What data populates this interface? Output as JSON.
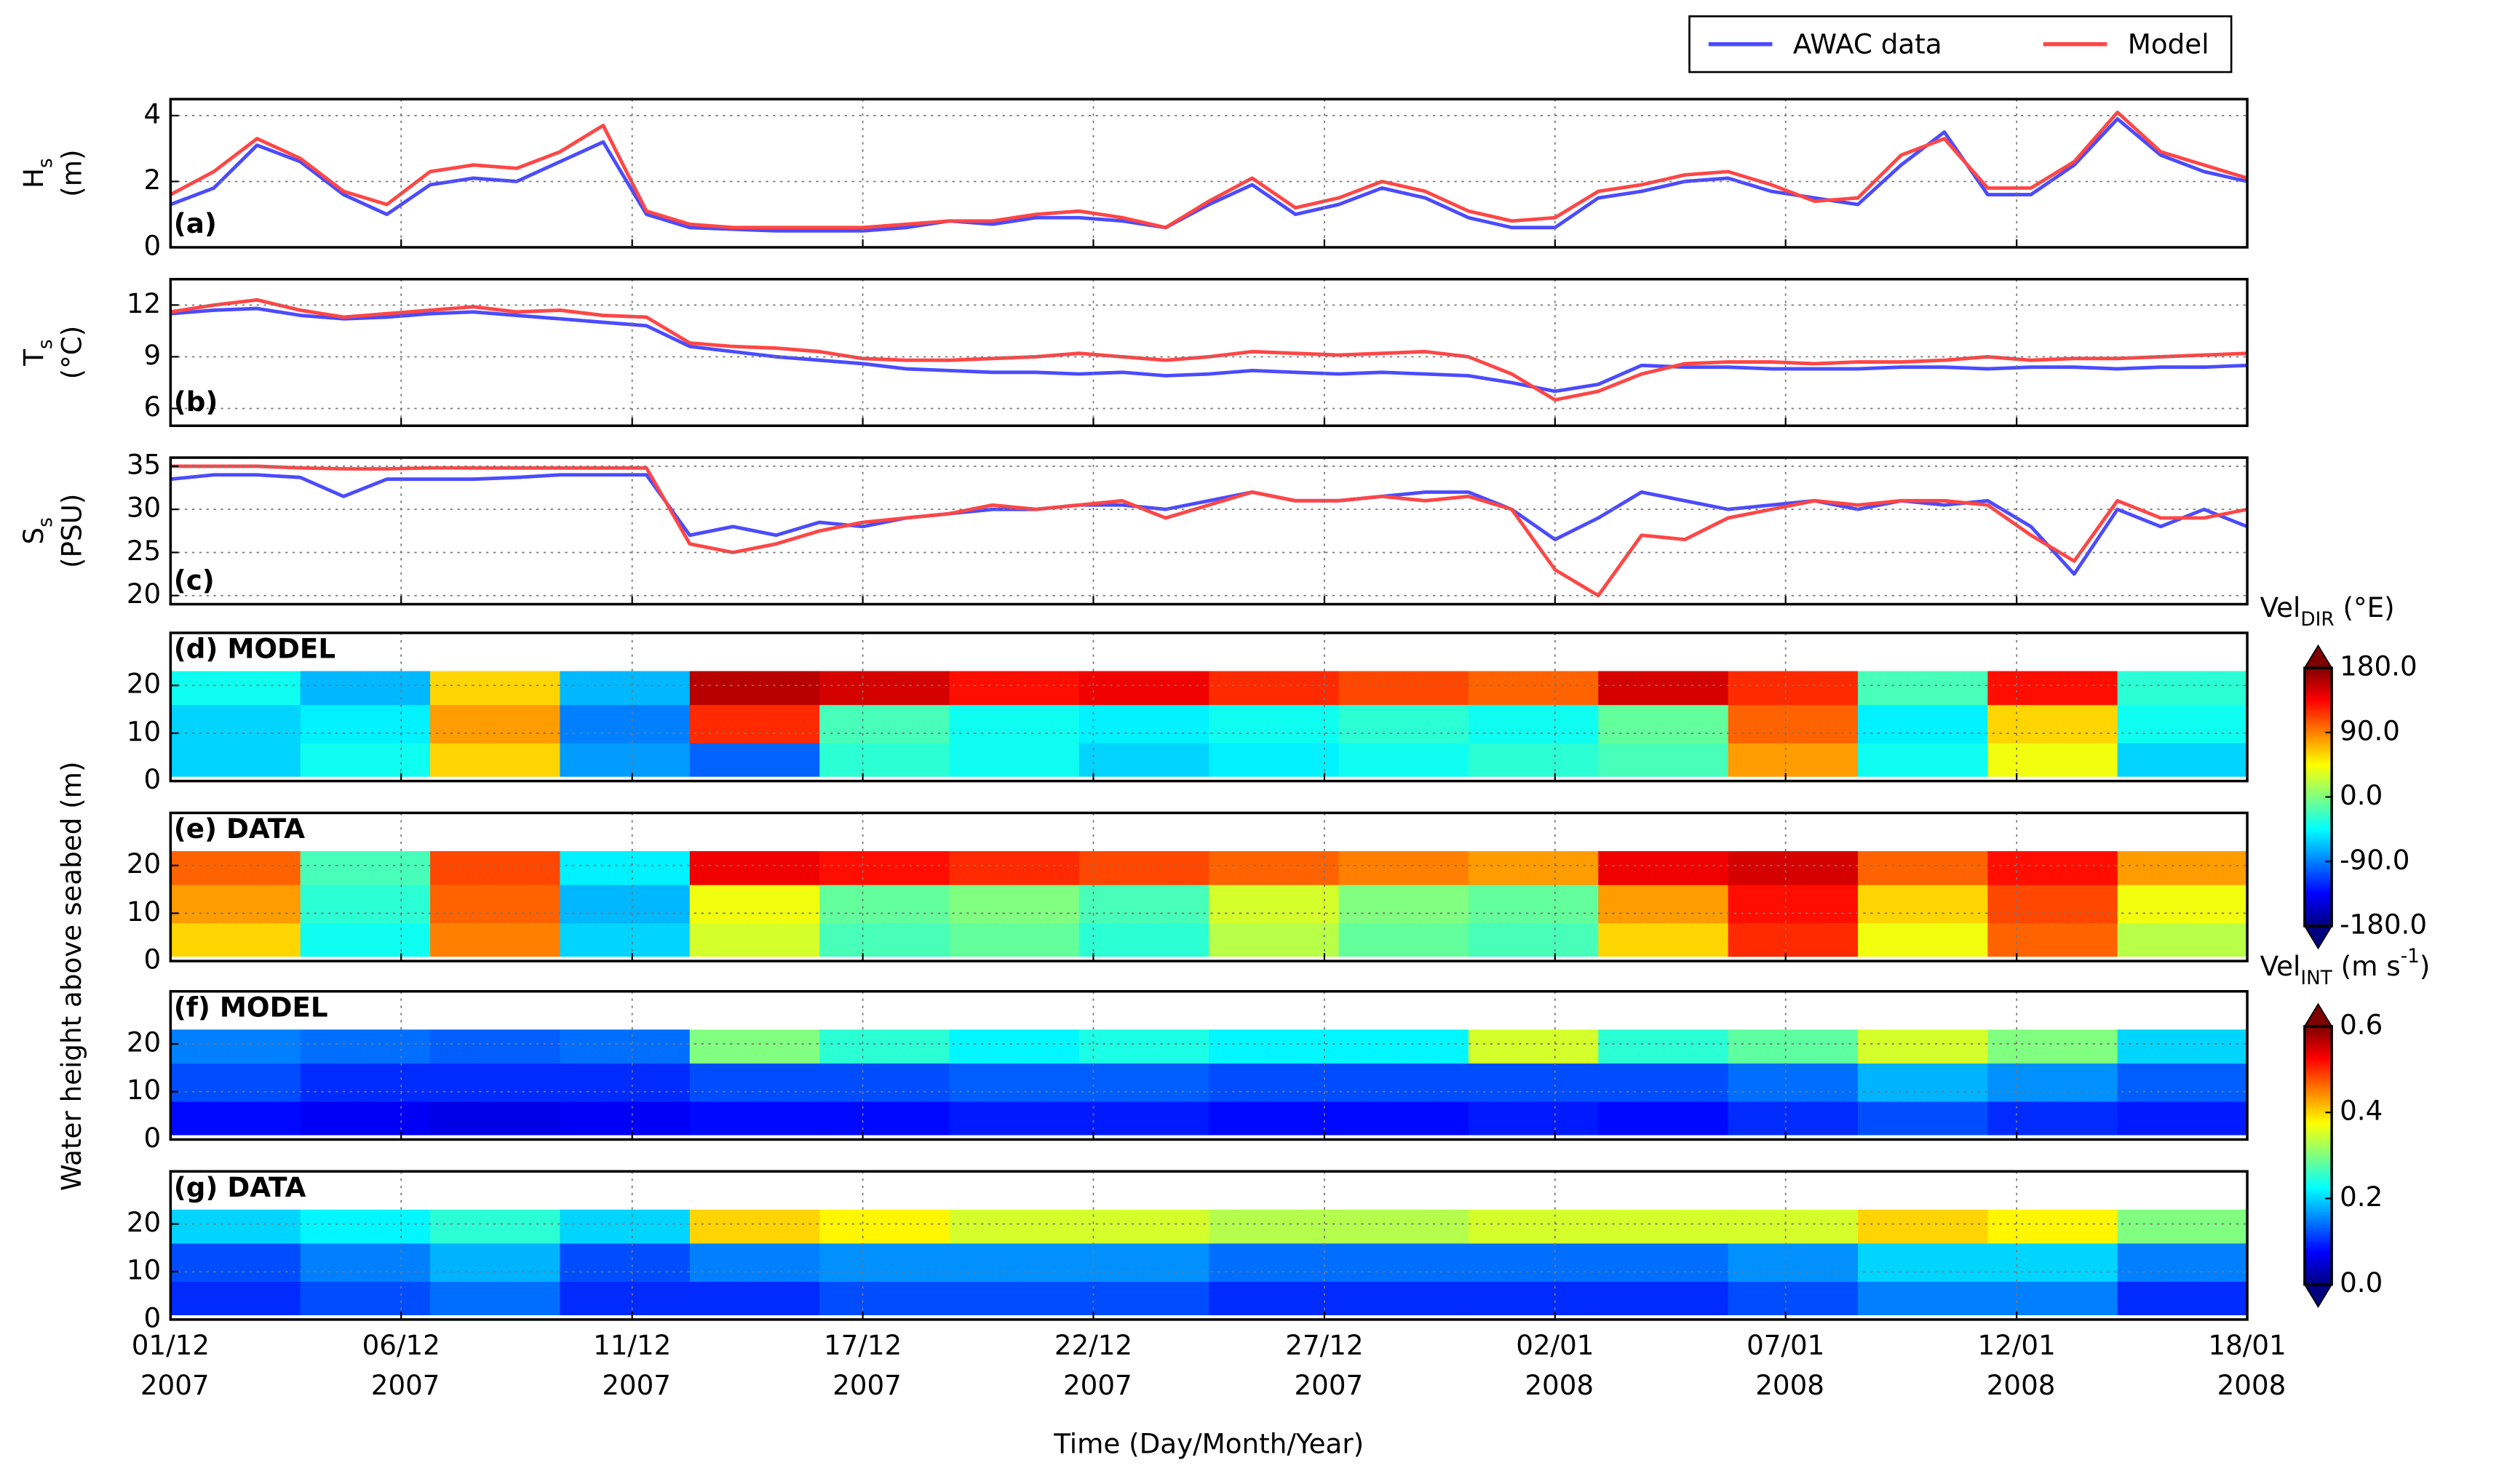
{
  "chart_data": [
    {
      "type": "line",
      "panel_label": "(a)",
      "panel_label_position": "lower left",
      "ylabel": [
        [
          {
            "text": "H"
          },
          {
            "text": "s",
            "style": "sub"
          }
        ],
        [
          {
            "text": "(m)"
          }
        ]
      ],
      "x": [
        0,
        1,
        2,
        3,
        4,
        5,
        6,
        7,
        8,
        9,
        10,
        11,
        12,
        13,
        14,
        15,
        16,
        17,
        18,
        19,
        20,
        21,
        22,
        23,
        24,
        25,
        26,
        27,
        28,
        29,
        30,
        31,
        32,
        33,
        34,
        35,
        36,
        37,
        38,
        39,
        40,
        41,
        42,
        43,
        44,
        45,
        46,
        47,
        48
      ],
      "series": [
        {
          "name": "AWAC data",
          "color": "#4b4bff",
          "values": [
            1.3,
            1.8,
            3.1,
            2.6,
            1.6,
            1.0,
            1.9,
            2.1,
            2.0,
            2.6,
            3.2,
            1.0,
            0.6,
            0.55,
            0.5,
            0.5,
            0.5,
            0.6,
            0.8,
            0.7,
            0.9,
            0.9,
            0.8,
            0.6,
            1.3,
            1.9,
            1.0,
            1.3,
            1.8,
            1.5,
            0.9,
            0.6,
            0.6,
            1.5,
            1.7,
            2.0,
            2.1,
            1.7,
            1.5,
            1.3,
            2.5,
            3.5,
            1.6,
            1.6,
            2.5,
            3.9,
            2.8,
            2.3,
            2.0
          ]
        },
        {
          "name": "Model",
          "color": "#ff4646",
          "values": [
            1.6,
            2.3,
            3.3,
            2.7,
            1.7,
            1.3,
            2.3,
            2.5,
            2.4,
            2.9,
            3.7,
            1.1,
            0.7,
            0.6,
            0.6,
            0.6,
            0.6,
            0.7,
            0.8,
            0.8,
            1.0,
            1.1,
            0.9,
            0.6,
            1.4,
            2.1,
            1.2,
            1.5,
            2.0,
            1.7,
            1.1,
            0.8,
            0.9,
            1.7,
            1.9,
            2.2,
            2.3,
            1.9,
            1.4,
            1.5,
            2.8,
            3.3,
            1.8,
            1.8,
            2.6,
            4.1,
            2.9,
            2.5,
            2.1
          ]
        }
      ],
      "xlim": [
        0,
        48
      ],
      "xticks": [
        0,
        5.33,
        10.67,
        16,
        21.33,
        26.67,
        32,
        37.33,
        42.67,
        48
      ],
      "ylim": [
        0,
        4.5
      ],
      "yticks": [
        0,
        2,
        4
      ],
      "grid": true,
      "legend": "top-right"
    },
    {
      "type": "line",
      "panel_label": "(b)",
      "panel_label_position": "lower left",
      "ylabel": [
        [
          {
            "text": "T"
          },
          {
            "text": "s",
            "style": "sub"
          }
        ],
        [
          {
            "text": "(°C)"
          }
        ]
      ],
      "x": [
        0,
        1,
        2,
        3,
        4,
        5,
        6,
        7,
        8,
        9,
        10,
        11,
        12,
        13,
        14,
        15,
        16,
        17,
        18,
        19,
        20,
        21,
        22,
        23,
        24,
        25,
        26,
        27,
        28,
        29,
        30,
        31,
        32,
        33,
        34,
        35,
        36,
        37,
        38,
        39,
        40,
        41,
        42,
        43,
        44,
        45,
        46,
        47,
        48
      ],
      "series": [
        {
          "color": "#4b4bff",
          "values": [
            11.5,
            11.7,
            11.8,
            11.4,
            11.2,
            11.3,
            11.5,
            11.6,
            11.4,
            11.2,
            11.0,
            10.8,
            9.6,
            9.3,
            9.0,
            8.8,
            8.6,
            8.3,
            8.2,
            8.1,
            8.1,
            8.0,
            8.1,
            7.9,
            8.0,
            8.2,
            8.1,
            8.0,
            8.1,
            8.0,
            7.9,
            7.5,
            7.0,
            7.4,
            8.5,
            8.4,
            8.4,
            8.3,
            8.3,
            8.3,
            8.4,
            8.4,
            8.3,
            8.4,
            8.4,
            8.3,
            8.4,
            8.4,
            8.5
          ]
        },
        {
          "color": "#ff4646",
          "values": [
            11.6,
            12.0,
            12.3,
            11.7,
            11.3,
            11.5,
            11.7,
            11.9,
            11.6,
            11.7,
            11.4,
            11.3,
            9.8,
            9.6,
            9.5,
            9.3,
            8.9,
            8.8,
            8.8,
            8.9,
            9.0,
            9.2,
            9.0,
            8.8,
            9.0,
            9.3,
            9.2,
            9.1,
            9.2,
            9.3,
            9.0,
            8.0,
            6.5,
            7.0,
            8.0,
            8.6,
            8.7,
            8.7,
            8.6,
            8.7,
            8.7,
            8.8,
            9.0,
            8.8,
            8.9,
            8.9,
            9.0,
            9.1,
            9.2
          ]
        }
      ],
      "xlim": [
        0,
        48
      ],
      "xticks": [
        0,
        5.33,
        10.67,
        16,
        21.33,
        26.67,
        32,
        37.33,
        42.67,
        48
      ],
      "ylim": [
        5,
        13.5
      ],
      "yticks": [
        6,
        9,
        12
      ],
      "grid": true
    },
    {
      "type": "line",
      "panel_label": "(c)",
      "panel_label_position": "lower left",
      "ylabel": [
        [
          {
            "text": "S"
          },
          {
            "text": "s",
            "style": "sub"
          }
        ],
        [
          {
            "text": "(PSU)"
          }
        ]
      ],
      "x": [
        0,
        1,
        2,
        3,
        4,
        5,
        6,
        7,
        8,
        9,
        10,
        11,
        12,
        13,
        14,
        15,
        16,
        17,
        18,
        19,
        20,
        21,
        22,
        23,
        24,
        25,
        26,
        27,
        28,
        29,
        30,
        31,
        32,
        33,
        34,
        35,
        36,
        37,
        38,
        39,
        40,
        41,
        42,
        43,
        44,
        45,
        46,
        47,
        48
      ],
      "series": [
        {
          "color": "#4b4bff",
          "values": [
            33.5,
            34,
            34,
            33.7,
            31.5,
            33.5,
            33.5,
            33.5,
            33.7,
            34,
            34,
            34,
            27,
            28,
            27,
            28.5,
            28,
            29,
            29.5,
            30,
            30,
            30.5,
            30.5,
            30,
            31,
            32,
            31,
            31,
            31.5,
            32,
            32,
            30,
            26.5,
            29,
            32,
            31,
            30,
            30.5,
            31,
            30,
            31,
            30.5,
            31,
            28,
            22.5,
            30,
            28,
            30,
            28
          ]
        },
        {
          "color": "#ff4646",
          "values": [
            35,
            35,
            35,
            34.8,
            34.7,
            34.7,
            34.8,
            34.8,
            34.8,
            34.8,
            34.8,
            34.8,
            26,
            25,
            26,
            27.5,
            28.5,
            29,
            29.5,
            30.5,
            30,
            30.5,
            31,
            29,
            30.5,
            32,
            31,
            31,
            31.5,
            31,
            31.5,
            30,
            23,
            20,
            27,
            26.5,
            29,
            30,
            31,
            30.5,
            31,
            31,
            30.5,
            27,
            24,
            31,
            29,
            29,
            30
          ]
        }
      ],
      "xlim": [
        0,
        48
      ],
      "xticks": [
        0,
        5.33,
        10.67,
        16,
        21.33,
        26.67,
        32,
        37.33,
        42.67,
        48
      ],
      "ylim": [
        19,
        36
      ],
      "yticks": [
        20,
        25,
        30,
        35
      ],
      "grid": true
    },
    {
      "type": "heatmap",
      "panel_label": "(d) MODEL",
      "panel_label_position": "upper left",
      "ylabel": "Water height above seabed (m)",
      "x": [
        0,
        3,
        6,
        9,
        12,
        15,
        18,
        21,
        24,
        27,
        30,
        33,
        36,
        39,
        42,
        45,
        48
      ],
      "y": [
        1,
        8,
        16,
        23
      ],
      "z": [
        [
          -60,
          -40,
          60,
          -80,
          -100,
          -30,
          -40,
          -60,
          -50,
          -40,
          -30,
          -20,
          80,
          -40,
          40,
          -60
        ],
        [
          -60,
          -50,
          80,
          -90,
          120,
          -20,
          -40,
          -50,
          -40,
          -30,
          -40,
          -10,
          100,
          -50,
          60,
          -40
        ],
        [
          -40,
          -70,
          60,
          -70,
          160,
          150,
          130,
          140,
          120,
          110,
          100,
          150,
          120,
          -20,
          130,
          -30
        ]
      ],
      "colormap": "jet",
      "clim": [
        -180,
        180
      ],
      "colorbar": {
        "label": [
          {
            "text": "Vel"
          },
          {
            "text": "DIR",
            "style": "sub"
          },
          {
            "text": " (°E)"
          }
        ],
        "extend": "both",
        "ticks": [
          {
            "value": 180,
            "label": "180.0"
          },
          {
            "value": 90,
            "label": "90.0"
          },
          {
            "value": 0,
            "label": "0.0"
          },
          {
            "value": -90,
            "label": "-90.0"
          },
          {
            "value": -180,
            "label": "-180.0"
          }
        ]
      },
      "xlim": [
        0,
        48
      ],
      "xticks": [
        0,
        5.33,
        10.67,
        16,
        21.33,
        26.67,
        32,
        37.33,
        42.67,
        48
      ],
      "ylim": [
        0,
        31
      ],
      "yticks": [
        0,
        10,
        20
      ],
      "grid": true
    },
    {
      "type": "heatmap",
      "panel_label": "(e) DATA",
      "panel_label_position": "upper left",
      "x": [
        0,
        3,
        6,
        9,
        12,
        15,
        18,
        21,
        24,
        27,
        30,
        33,
        36,
        39,
        42,
        45,
        48
      ],
      "y": [
        1,
        8,
        16,
        23
      ],
      "z": [
        [
          60,
          -40,
          90,
          -60,
          30,
          -20,
          -10,
          -30,
          20,
          -10,
          -20,
          60,
          120,
          40,
          100,
          20
        ],
        [
          80,
          -30,
          100,
          -70,
          40,
          -10,
          0,
          -20,
          30,
          0,
          -10,
          80,
          130,
          60,
          110,
          40
        ],
        [
          100,
          -20,
          110,
          -50,
          140,
          130,
          120,
          110,
          100,
          90,
          80,
          140,
          150,
          100,
          130,
          80
        ]
      ],
      "colormap": "jet",
      "clim": [
        -180,
        180
      ],
      "xlim": [
        0,
        48
      ],
      "xticks": [
        0,
        5.33,
        10.67,
        16,
        21.33,
        26.67,
        32,
        37.33,
        42.67,
        48
      ],
      "ylim": [
        0,
        31
      ],
      "yticks": [
        0,
        10,
        20
      ],
      "grid": true
    },
    {
      "type": "heatmap",
      "panel_label": "(f) MODEL",
      "panel_label_position": "upper left",
      "x": [
        0,
        3,
        6,
        9,
        12,
        15,
        18,
        21,
        24,
        27,
        30,
        33,
        36,
        39,
        42,
        45,
        48
      ],
      "y": [
        1,
        8,
        16,
        23
      ],
      "z": [
        [
          0.08,
          0.07,
          0.06,
          0.07,
          0.08,
          0.08,
          0.09,
          0.09,
          0.08,
          0.08,
          0.09,
          0.08,
          0.1,
          0.12,
          0.1,
          0.09
        ],
        [
          0.12,
          0.1,
          0.1,
          0.1,
          0.12,
          0.12,
          0.13,
          0.13,
          0.12,
          0.12,
          0.12,
          0.12,
          0.14,
          0.18,
          0.16,
          0.13
        ],
        [
          0.15,
          0.14,
          0.13,
          0.14,
          0.3,
          0.25,
          0.22,
          0.24,
          0.22,
          0.22,
          0.35,
          0.25,
          0.28,
          0.35,
          0.3,
          0.2
        ]
      ],
      "colormap": "jet",
      "clim": [
        0,
        0.6
      ],
      "colorbar": {
        "label": [
          {
            "text": "Vel"
          },
          {
            "text": "INT",
            "style": "sub"
          },
          {
            "text": " (m s"
          },
          {
            "text": "-1",
            "style": "sup"
          },
          {
            "text": ")"
          }
        ],
        "extend": "both",
        "ticks": [
          0.6,
          0.4,
          0.2,
          {
            "value": 0,
            "label": "0.0"
          }
        ]
      },
      "xlim": [
        0,
        48
      ],
      "xticks": [
        0,
        5.33,
        10.67,
        16,
        21.33,
        26.67,
        32,
        37.33,
        42.67,
        48
      ],
      "ylim": [
        0,
        31
      ],
      "yticks": [
        0,
        10,
        20
      ],
      "grid": true
    },
    {
      "type": "heatmap",
      "panel_label": "(g) DATA",
      "panel_label_position": "upper left",
      "x": [
        0,
        3,
        6,
        9,
        12,
        15,
        18,
        21,
        24,
        27,
        30,
        33,
        36,
        39,
        42,
        45,
        48
      ],
      "y": [
        1,
        8,
        16,
        23
      ],
      "z": [
        [
          0.1,
          0.12,
          0.14,
          0.1,
          0.1,
          0.12,
          0.12,
          0.12,
          0.1,
          0.1,
          0.1,
          0.1,
          0.12,
          0.15,
          0.15,
          0.1
        ],
        [
          0.12,
          0.15,
          0.18,
          0.12,
          0.15,
          0.16,
          0.16,
          0.16,
          0.14,
          0.14,
          0.14,
          0.14,
          0.16,
          0.2,
          0.2,
          0.15
        ],
        [
          0.2,
          0.22,
          0.25,
          0.2,
          0.4,
          0.38,
          0.35,
          0.35,
          0.33,
          0.33,
          0.35,
          0.35,
          0.35,
          0.4,
          0.38,
          0.3
        ]
      ],
      "colormap": "jet",
      "clim": [
        0,
        0.6
      ],
      "xlabel": "Time (Day/Month/Year)",
      "xlim": [
        0,
        48
      ],
      "xticks": [
        {
          "value": 0,
          "label": "01/12 2007"
        },
        {
          "value": 5.33,
          "label": "06/12 2007"
        },
        {
          "value": 10.67,
          "label": "11/12 2007"
        },
        {
          "value": 16,
          "label": "17/12 2007"
        },
        {
          "value": 21.33,
          "label": "22/12 2007"
        },
        {
          "value": 26.67,
          "label": "27/12 2007"
        },
        {
          "value": 32,
          "label": "02/01 2008"
        },
        {
          "value": 37.33,
          "label": "07/01 2008"
        },
        {
          "value": 42.67,
          "label": "12/01 2008"
        },
        {
          "value": 48,
          "label": "18/01 2008"
        }
      ],
      "ylim": [
        0,
        31
      ],
      "yticks": [
        0,
        10,
        20
      ],
      "grid": true
    }
  ]
}
